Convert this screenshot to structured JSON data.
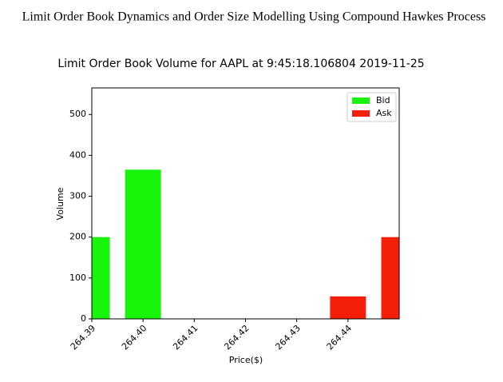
{
  "title": "Limit Order Book Dynamics and Order Size Modelling Using Compound Hawkes Process",
  "chart_data": {
    "type": "bar",
    "title": "Limit Order Book Volume for AAPL at 9:45:18.106804 2019-11-25",
    "xlabel": "Price($)",
    "ylabel": "Volume",
    "series": [
      {
        "name": "Bid",
        "color": "#17f50a",
        "x": [
          264.39,
          264.4
        ],
        "values": [
          200,
          365
        ]
      },
      {
        "name": "Ask",
        "color": "#f51f0a",
        "x": [
          264.44,
          264.45
        ],
        "values": [
          55,
          200
        ]
      }
    ],
    "xlim": [
      264.39,
      264.45
    ],
    "xticks": [
      264.39,
      {
        "value": 264.4,
        "label": "264.40"
      },
      264.41,
      264.42,
      264.43,
      264.44
    ],
    "ylim": [
      0,
      565
    ],
    "yticks": [
      0,
      100,
      200,
      300,
      400,
      500
    ],
    "legend": "upper right",
    "grid": false
  }
}
